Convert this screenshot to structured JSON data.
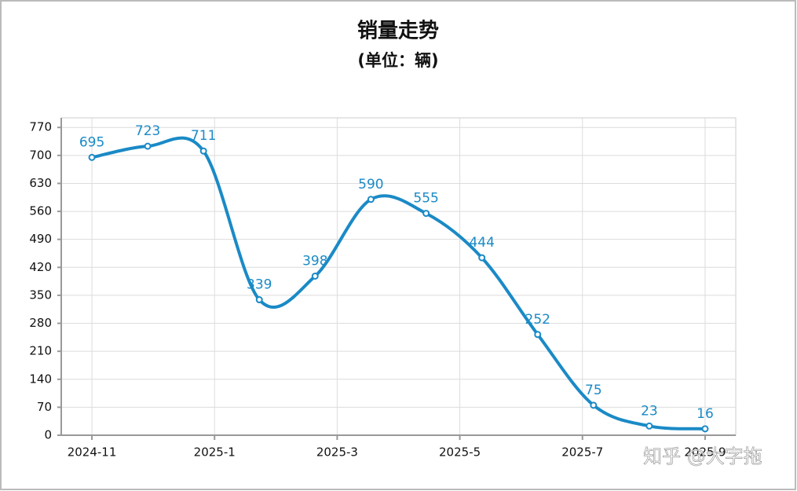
{
  "chart_data": {
    "type": "line",
    "title": "销量走势",
    "subtitle": "(单位：辆)",
    "x": [
      0,
      0.91,
      1.82,
      2.73,
      3.64,
      4.55,
      5.45,
      6.36,
      7.27,
      8.18,
      9.09,
      10
    ],
    "series": [
      {
        "name": "销量",
        "color": "#1a8ac6",
        "values": [
          695,
          723,
          711,
          339,
          398,
          590,
          555,
          444,
          252,
          75,
          23,
          16
        ]
      }
    ],
    "xlim": [
      -0.5,
      10.5
    ],
    "xticks": [
      {
        "value": 0,
        "label": "2024-11"
      },
      {
        "value": 2,
        "label": "2025-1"
      },
      {
        "value": 4,
        "label": "2025-3"
      },
      {
        "value": 6,
        "label": "2025-5"
      },
      {
        "value": 8,
        "label": "2025-7"
      },
      {
        "value": 10,
        "label": "2025-9"
      }
    ],
    "ylim": [
      0,
      794
    ],
    "yticks": [
      0,
      70,
      140,
      210,
      280,
      350,
      420,
      490,
      560,
      630,
      700,
      770
    ],
    "grid": true
  },
  "watermark": "知乎 @大字拖"
}
